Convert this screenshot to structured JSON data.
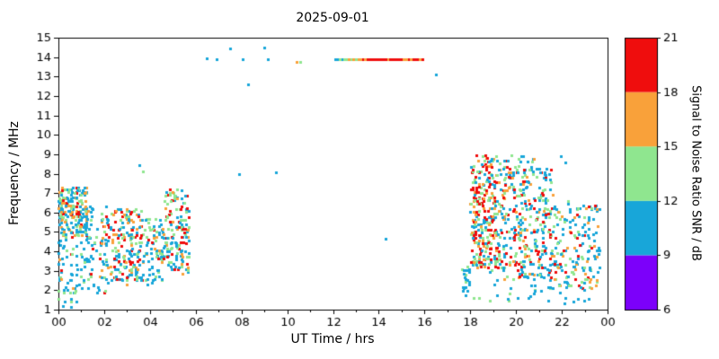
{
  "chart_data": {
    "type": "scatter",
    "title": "2025-09-01",
    "xlabel": "UT Time / hrs",
    "ylabel": "Frequency / MHz",
    "xlim": [
      0,
      24
    ],
    "ylim": [
      1,
      15
    ],
    "grid": false,
    "legend": "colorbar-right",
    "marker_px": 3,
    "seed": 1234,
    "xtick_values": [
      0,
      2,
      4,
      6,
      8,
      10,
      12,
      14,
      16,
      18,
      20,
      22,
      24
    ],
    "xtick_labels": [
      "00",
      "02",
      "04",
      "06",
      "08",
      "10",
      "12",
      "14",
      "16",
      "18",
      "20",
      "22",
      "00"
    ],
    "xtick_minor_values": [
      1,
      3,
      5,
      7,
      9,
      11,
      13,
      15,
      17,
      19,
      21,
      23
    ],
    "ytick_values": [
      1,
      2,
      3,
      4,
      5,
      6,
      7,
      8,
      9,
      10,
      11,
      12,
      13,
      14,
      15
    ],
    "ytick_labels": [
      "1",
      "2",
      "3",
      "4",
      "5",
      "6",
      "7",
      "8",
      "9",
      "10",
      "11",
      "12",
      "13",
      "14",
      "15"
    ],
    "colors": {
      "p": "#7c00fa",
      "b": "#18a6d9",
      "g": "#8fe68f",
      "o": "#f9a13a",
      "r": "#ef0d0d"
    },
    "colorbar": {
      "label": "Signal to Noise Ratio SNR / dB",
      "tick_values": [
        6,
        9,
        12,
        15,
        18,
        21
      ],
      "range": [
        6,
        21
      ],
      "bands": [
        {
          "snr": [
            6,
            9
          ],
          "color_key": "p"
        },
        {
          "snr": [
            9,
            12
          ],
          "color_key": "b"
        },
        {
          "snr": [
            12,
            15
          ],
          "color_key": "g"
        },
        {
          "snr": [
            15,
            18
          ],
          "color_key": "o"
        },
        {
          "snr": [
            18,
            21
          ],
          "color_key": "r"
        }
      ]
    },
    "clusters": [
      {
        "t": [
          0.0,
          1.25
        ],
        "f": [
          4.8,
          7.3
        ],
        "n": 210,
        "w": {
          "b": 40,
          "g": 26,
          "o": 20,
          "r": 14
        }
      },
      {
        "t": [
          0.0,
          1.25
        ],
        "f": [
          2.0,
          4.8
        ],
        "n": 60,
        "w": {
          "b": 55,
          "g": 25,
          "o": 10,
          "r": 10
        }
      },
      {
        "t": [
          0.0,
          0.8
        ],
        "f": [
          1.1,
          2.0
        ],
        "n": 14,
        "w": {
          "b": 75,
          "g": 25
        }
      },
      {
        "t": [
          1.25,
          2.3
        ],
        "f": [
          1.8,
          6.4
        ],
        "n": 90,
        "w": {
          "b": 50,
          "g": 25,
          "o": 13,
          "r": 12
        }
      },
      {
        "t": [
          2.3,
          3.6
        ],
        "f": [
          2.3,
          6.2
        ],
        "n": 170,
        "w": {
          "b": 38,
          "g": 25,
          "o": 15,
          "r": 22
        }
      },
      {
        "t": [
          3.6,
          4.6
        ],
        "f": [
          2.3,
          5.7
        ],
        "n": 85,
        "w": {
          "b": 52,
          "g": 26,
          "o": 12,
          "r": 10
        }
      },
      {
        "t": [
          4.6,
          5.7
        ],
        "f": [
          2.8,
          7.2
        ],
        "n": 160,
        "w": {
          "b": 36,
          "g": 26,
          "o": 16,
          "r": 22
        }
      },
      {
        "t": [
          17.6,
          18.0
        ],
        "f": [
          1.9,
          3.3
        ],
        "n": 18,
        "w": {
          "b": 80,
          "g": 20
        }
      },
      {
        "t": [
          18.0,
          19.15
        ],
        "f": [
          2.9,
          9.0
        ],
        "n": 270,
        "w": {
          "b": 30,
          "g": 22,
          "o": 16,
          "r": 32
        }
      },
      {
        "t": [
          19.15,
          20.85
        ],
        "f": [
          2.5,
          9.0
        ],
        "n": 260,
        "w": {
          "b": 38,
          "g": 25,
          "o": 15,
          "r": 22
        }
      },
      {
        "t": [
          20.85,
          21.6
        ],
        "f": [
          2.5,
          8.3
        ],
        "n": 110,
        "w": {
          "b": 50,
          "g": 22,
          "o": 14,
          "r": 14
        }
      },
      {
        "t": [
          21.6,
          23.65
        ],
        "f": [
          2.0,
          6.6
        ],
        "n": 175,
        "w": {
          "b": 60,
          "g": 22,
          "o": 10,
          "r": 8
        }
      },
      {
        "t": [
          17.7,
          23.2
        ],
        "f": [
          1.3,
          2.3
        ],
        "n": 35,
        "w": {
          "b": 78,
          "g": 22
        }
      }
    ],
    "line": {
      "f": 13.9,
      "t_start": 12.1,
      "t_step": 0.1,
      "colors": [
        "b",
        "b",
        "g",
        "b",
        "g",
        "g",
        "o",
        "g",
        "o",
        "g",
        "o",
        "o",
        "r",
        "o",
        "r",
        "r",
        "r",
        "r",
        "r",
        "r",
        "r",
        "r",
        "r",
        "o",
        "r",
        "r",
        "r",
        "r",
        "r",
        "r",
        "o",
        "o",
        "r",
        "o",
        "r",
        "r",
        "r",
        "o",
        "r"
      ]
    },
    "points": [
      [
        3.55,
        8.45,
        "b"
      ],
      [
        3.7,
        8.1,
        "g"
      ],
      [
        6.5,
        13.95,
        "b"
      ],
      [
        6.9,
        13.9,
        "b"
      ],
      [
        7.5,
        14.45,
        "b"
      ],
      [
        7.9,
        8.0,
        "b"
      ],
      [
        8.05,
        13.9,
        "b"
      ],
      [
        8.3,
        12.6,
        "b"
      ],
      [
        9.0,
        14.5,
        "b"
      ],
      [
        9.15,
        13.9,
        "b"
      ],
      [
        9.5,
        8.05,
        "b"
      ],
      [
        10.4,
        13.75,
        "o"
      ],
      [
        10.55,
        13.75,
        "g"
      ],
      [
        14.3,
        4.65,
        "b"
      ],
      [
        16.5,
        13.1,
        "b"
      ],
      [
        21.95,
        8.9,
        "b"
      ],
      [
        22.15,
        8.6,
        "b"
      ]
    ]
  }
}
